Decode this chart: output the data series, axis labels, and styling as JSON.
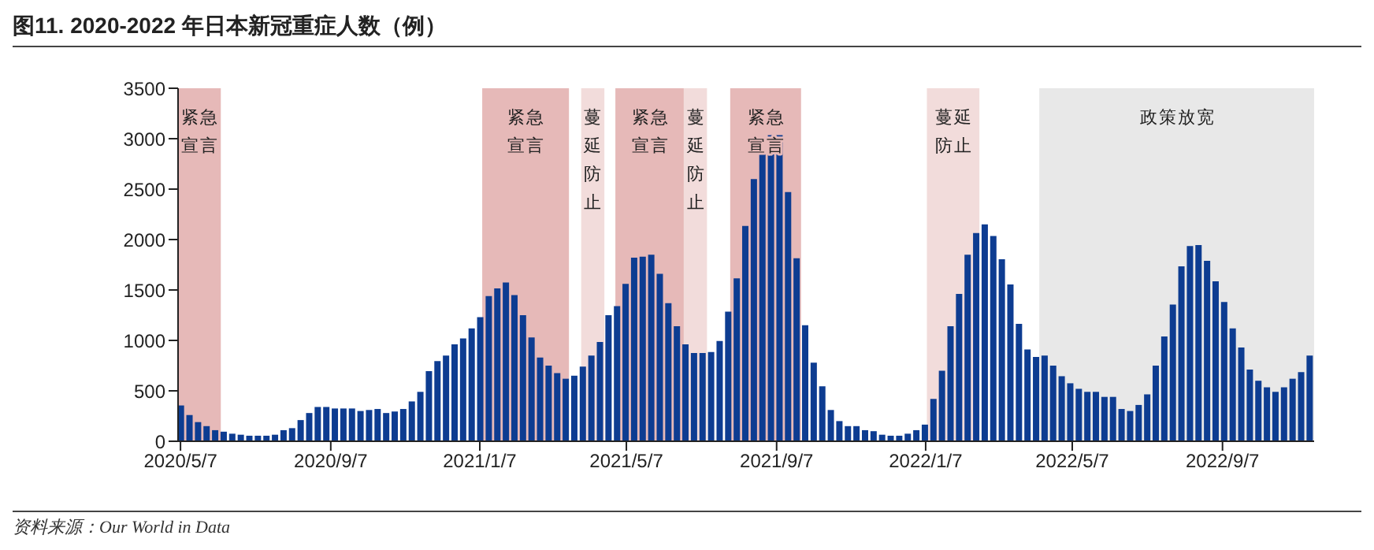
{
  "chart_data": {
    "type": "bar",
    "title": "图11. 2020-2022 年日本新冠重症人数（例）",
    "annotations": [
      "资料来源：Our World in Data"
    ],
    "x": [
      "2020-05-07",
      "2020-05-14",
      "2020-05-21",
      "2020-05-28",
      "2020-06-04",
      "2020-06-11",
      "2020-06-18",
      "2020-06-25",
      "2020-07-02",
      "2020-07-09",
      "2020-07-16",
      "2020-07-23",
      "2020-07-30",
      "2020-08-06",
      "2020-08-13",
      "2020-08-20",
      "2020-08-27",
      "2020-09-03",
      "2020-09-10",
      "2020-09-17",
      "2020-09-24",
      "2020-10-01",
      "2020-10-08",
      "2020-10-15",
      "2020-10-22",
      "2020-10-29",
      "2020-11-05",
      "2020-11-12",
      "2020-11-19",
      "2020-11-26",
      "2020-12-03",
      "2020-12-10",
      "2020-12-17",
      "2020-12-24",
      "2020-12-31",
      "2021-01-07",
      "2021-01-14",
      "2021-01-21",
      "2021-01-28",
      "2021-02-04",
      "2021-02-11",
      "2021-02-18",
      "2021-02-25",
      "2021-03-04",
      "2021-03-11",
      "2021-03-18",
      "2021-03-25",
      "2021-04-01",
      "2021-04-08",
      "2021-04-15",
      "2021-04-22",
      "2021-04-29",
      "2021-05-06",
      "2021-05-13",
      "2021-05-20",
      "2021-05-27",
      "2021-06-03",
      "2021-06-10",
      "2021-06-17",
      "2021-06-24",
      "2021-07-01",
      "2021-07-08",
      "2021-07-15",
      "2021-07-22",
      "2021-07-29",
      "2021-08-05",
      "2021-08-12",
      "2021-08-19",
      "2021-08-26",
      "2021-09-02",
      "2021-09-09",
      "2021-09-16",
      "2021-09-23",
      "2021-09-30",
      "2021-10-07",
      "2021-10-14",
      "2021-10-21",
      "2021-10-28",
      "2021-11-04",
      "2021-11-11",
      "2021-11-18",
      "2021-11-25",
      "2021-12-02",
      "2021-12-09",
      "2021-12-16",
      "2021-12-23",
      "2021-12-30",
      "2022-01-06",
      "2022-01-13",
      "2022-01-20",
      "2022-01-27",
      "2022-02-03",
      "2022-02-10",
      "2022-02-17",
      "2022-02-24",
      "2022-03-03",
      "2022-03-10",
      "2022-03-17",
      "2022-03-24",
      "2022-03-31",
      "2022-04-07",
      "2022-04-14",
      "2022-04-21",
      "2022-04-28",
      "2022-05-05",
      "2022-05-12",
      "2022-05-19",
      "2022-05-26",
      "2022-06-02",
      "2022-06-09",
      "2022-06-16",
      "2022-06-23",
      "2022-06-30",
      "2022-07-07",
      "2022-07-14",
      "2022-07-21",
      "2022-07-28",
      "2022-08-04",
      "2022-08-11",
      "2022-08-18",
      "2022-08-25",
      "2022-09-01",
      "2022-09-08",
      "2022-09-15",
      "2022-09-22",
      "2022-09-29",
      "2022-10-06",
      "2022-10-13",
      "2022-10-20",
      "2022-10-27",
      "2022-11-03",
      "2022-11-10",
      "2022-11-17"
    ],
    "values": [
      355,
      260,
      190,
      150,
      110,
      95,
      75,
      65,
      55,
      55,
      55,
      65,
      110,
      130,
      210,
      280,
      340,
      340,
      325,
      325,
      325,
      300,
      310,
      320,
      280,
      295,
      320,
      395,
      490,
      695,
      795,
      850,
      960,
      1020,
      1120,
      1230,
      1440,
      1515,
      1575,
      1450,
      1250,
      1030,
      830,
      750,
      675,
      620,
      650,
      740,
      850,
      985,
      1250,
      1340,
      1560,
      1820,
      1830,
      1850,
      1660,
      1370,
      1140,
      960,
      875,
      875,
      885,
      995,
      1285,
      1615,
      2135,
      2600,
      2845,
      3035,
      3035,
      2470,
      1815,
      1150,
      780,
      545,
      310,
      200,
      150,
      150,
      110,
      100,
      65,
      55,
      55,
      75,
      110,
      165,
      420,
      700,
      1140,
      1460,
      1850,
      2065,
      2150,
      2035,
      1805,
      1555,
      1165,
      910,
      835,
      850,
      750,
      645,
      575,
      520,
      490,
      490,
      440,
      440,
      320,
      300,
      360,
      465,
      750,
      1040,
      1355,
      1735,
      1935,
      1945,
      1790,
      1585,
      1380,
      1120,
      930,
      710,
      600,
      535,
      490,
      535,
      620,
      685,
      850
    ],
    "color": "#0d3c91",
    "xlim": [
      "2020-05-05",
      "2022-11-21"
    ],
    "xticks": [
      {
        "value": "2020-05-07",
        "label": "2020/5/7"
      },
      {
        "value": "2020-09-07",
        "label": "2020/9/7"
      },
      {
        "value": "2021-01-07",
        "label": "2021/1/7"
      },
      {
        "value": "2021-05-07",
        "label": "2021/5/7"
      },
      {
        "value": "2021-09-07",
        "label": "2021/9/7"
      },
      {
        "value": "2022-01-07",
        "label": "2022/1/7"
      },
      {
        "value": "2022-05-07",
        "label": "2022/5/7"
      },
      {
        "value": "2022-09-07",
        "label": "2022/9/7"
      }
    ],
    "ylim": [
      0,
      3500
    ],
    "yticks": [
      0,
      500,
      1000,
      1500,
      2000,
      2500,
      3000,
      3500
    ],
    "bands": [
      {
        "axis": "x",
        "from": "2020-05-05",
        "to": "2020-06-09",
        "label": "紧急宣言",
        "color": "#e6b9b8"
      },
      {
        "axis": "x",
        "from": "2021-01-09",
        "to": "2021-03-21",
        "label": "紧急宣言",
        "color": "#e6b9b8"
      },
      {
        "axis": "x",
        "from": "2021-03-31",
        "to": "2021-04-19",
        "label": "蔓延防止",
        "color": "#f2dcdb"
      },
      {
        "axis": "x",
        "from": "2021-04-28",
        "to": "2021-06-23",
        "label": "紧急宣言",
        "color": "#e6b9b8"
      },
      {
        "axis": "x",
        "from": "2021-06-23",
        "to": "2021-07-12",
        "label": "蔓延防止",
        "color": "#f2dcdb"
      },
      {
        "axis": "x",
        "from": "2021-07-31",
        "to": "2021-09-27",
        "label": "紧急宣言",
        "color": "#e6b9b8"
      },
      {
        "axis": "x",
        "from": "2022-01-08",
        "to": "2022-02-20",
        "label": "蔓延防止",
        "color": "#f2dcdb"
      },
      {
        "axis": "x",
        "from": "2022-04-10",
        "to": "2022-11-21",
        "label": "政策放宽",
        "color": "#e8e8e8"
      }
    ]
  }
}
